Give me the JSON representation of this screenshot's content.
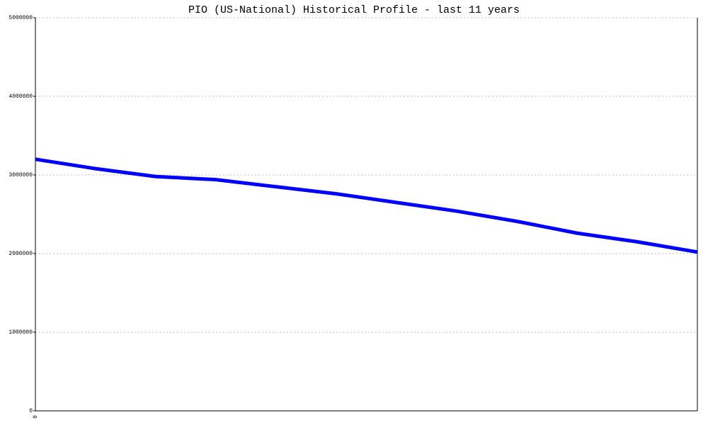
{
  "chart_data": {
    "type": "line",
    "title": "PIO (US-National) Historical Profile - last 11 years",
    "categories": [
      "0",
      null,
      null,
      null,
      null,
      null,
      null,
      null,
      null,
      null,
      null,
      null
    ],
    "series": [
      {
        "color": "#0000ff",
        "values": [
          3200000,
          3080000,
          2980000,
          2940000,
          2850000,
          2760000,
          2650000,
          2540000,
          2410000,
          2260000,
          2150000,
          2020000
        ]
      }
    ],
    "ylim": [
      0,
      5000000
    ],
    "yticks": [
      0,
      1000000,
      2000000,
      3000000,
      4000000,
      5000000
    ],
    "grid": true
  }
}
